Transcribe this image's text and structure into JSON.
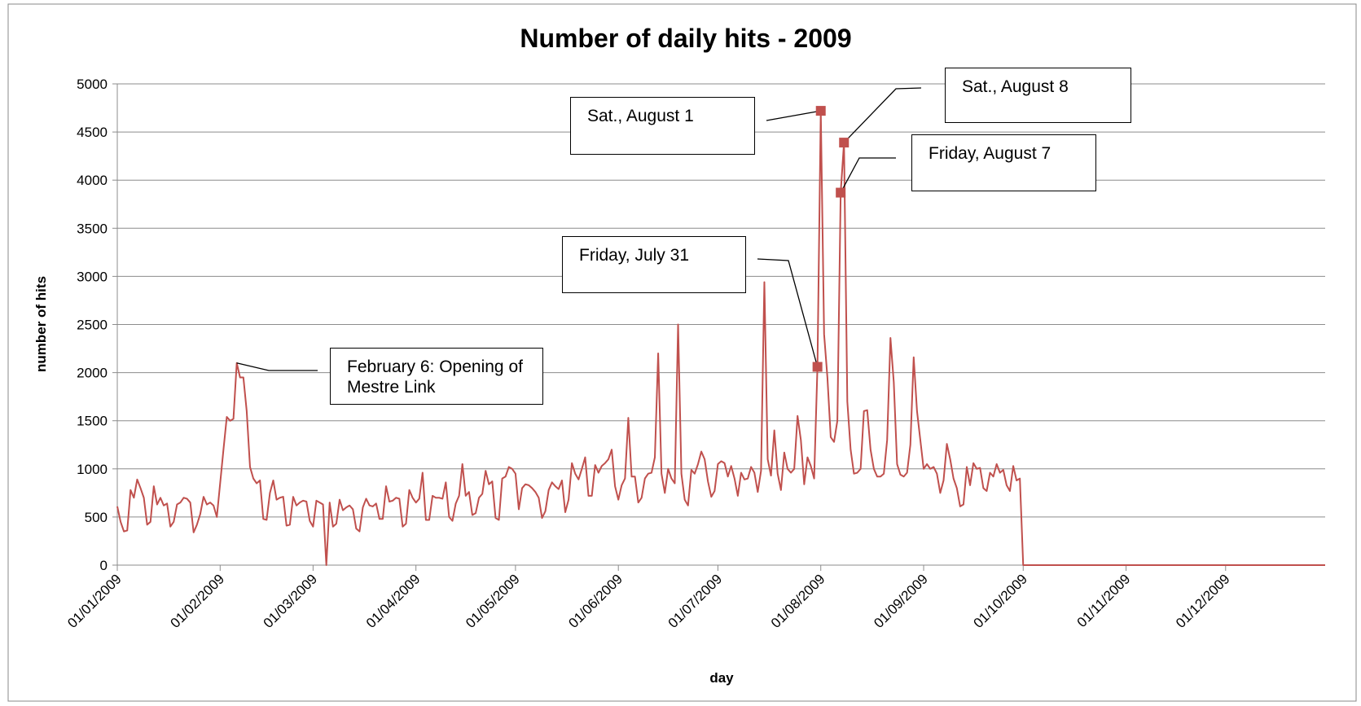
{
  "chart_data": {
    "type": "line",
    "title": "Number of daily hits - 2009",
    "xlabel": "day",
    "ylabel": "number of hits",
    "color": "#c0504d",
    "grid": true,
    "ylim": [
      0,
      5000
    ],
    "yticks": [
      0,
      500,
      1000,
      1500,
      2000,
      2500,
      3000,
      3500,
      4000,
      4500,
      5000
    ],
    "xticks": [
      "01/01/2009",
      "01/02/2009",
      "01/03/2009",
      "01/04/2009",
      "01/05/2009",
      "01/06/2009",
      "01/07/2009",
      "01/08/2009",
      "01/09/2009",
      "01/10/2009",
      "01/11/2009",
      "01/12/2009"
    ],
    "x": [
      "01/01/2009",
      "02/01/2009",
      "03/01/2009",
      "04/01/2009",
      "05/01/2009",
      "06/01/2009",
      "07/01/2009",
      "08/01/2009",
      "09/01/2009",
      "10/01/2009",
      "11/01/2009",
      "12/01/2009",
      "13/01/2009",
      "14/01/2009",
      "15/01/2009",
      "16/01/2009",
      "17/01/2009",
      "18/01/2009",
      "19/01/2009",
      "20/01/2009",
      "21/01/2009",
      "22/01/2009",
      "23/01/2009",
      "24/01/2009",
      "25/01/2009",
      "26/01/2009",
      "27/01/2009",
      "28/01/2009",
      "29/01/2009",
      "30/01/2009",
      "31/01/2009",
      "01/02/2009",
      "02/02/2009",
      "03/02/2009",
      "04/02/2009",
      "05/02/2009",
      "06/02/2009",
      "07/02/2009",
      "08/02/2009",
      "09/02/2009",
      "10/02/2009",
      "11/02/2009",
      "12/02/2009",
      "13/02/2009",
      "14/02/2009",
      "15/02/2009",
      "16/02/2009",
      "17/02/2009",
      "18/02/2009",
      "19/02/2009",
      "20/02/2009",
      "21/02/2009",
      "22/02/2009",
      "23/02/2009",
      "24/02/2009",
      "25/02/2009",
      "26/02/2009",
      "27/02/2009",
      "28/02/2009",
      "01/03/2009",
      "02/03/2009",
      "03/03/2009",
      "04/03/2009",
      "05/03/2009",
      "06/03/2009",
      "07/03/2009",
      "08/03/2009",
      "09/03/2009",
      "10/03/2009",
      "11/03/2009",
      "12/03/2009",
      "13/03/2009",
      "14/03/2009",
      "15/03/2009",
      "16/03/2009",
      "17/03/2009",
      "18/03/2009",
      "19/03/2009",
      "20/03/2009",
      "21/03/2009",
      "22/03/2009",
      "23/03/2009",
      "24/03/2009",
      "25/03/2009",
      "26/03/2009",
      "27/03/2009",
      "28/03/2009",
      "29/03/2009",
      "30/03/2009",
      "31/03/2009",
      "01/04/2009",
      "02/04/2009",
      "03/04/2009",
      "04/04/2009",
      "05/04/2009",
      "06/04/2009",
      "07/04/2009",
      "08/04/2009",
      "09/04/2009",
      "10/04/2009",
      "11/04/2009",
      "12/04/2009",
      "13/04/2009",
      "14/04/2009",
      "15/04/2009",
      "16/04/2009",
      "17/04/2009",
      "18/04/2009",
      "19/04/2009",
      "20/04/2009",
      "21/04/2009",
      "22/04/2009",
      "23/04/2009",
      "24/04/2009",
      "25/04/2009",
      "26/04/2009",
      "27/04/2009",
      "28/04/2009",
      "29/04/2009",
      "30/04/2009",
      "01/05/2009",
      "02/05/2009",
      "03/05/2009",
      "04/05/2009",
      "05/05/2009",
      "06/05/2009",
      "07/05/2009",
      "08/05/2009",
      "09/05/2009",
      "10/05/2009",
      "11/05/2009",
      "12/05/2009",
      "13/05/2009",
      "14/05/2009",
      "15/05/2009",
      "16/05/2009",
      "17/05/2009",
      "18/05/2009",
      "19/05/2009",
      "20/05/2009",
      "21/05/2009",
      "22/05/2009",
      "23/05/2009",
      "24/05/2009",
      "25/05/2009",
      "26/05/2009",
      "27/05/2009",
      "28/05/2009",
      "29/05/2009",
      "30/05/2009",
      "31/05/2009",
      "01/06/2009",
      "02/06/2009",
      "03/06/2009",
      "04/06/2009",
      "05/06/2009",
      "06/06/2009",
      "07/06/2009",
      "08/06/2009",
      "09/06/2009",
      "10/06/2009",
      "11/06/2009",
      "12/06/2009",
      "13/06/2009",
      "14/06/2009",
      "15/06/2009",
      "16/06/2009",
      "17/06/2009",
      "18/06/2009",
      "19/06/2009",
      "20/06/2009",
      "21/06/2009",
      "22/06/2009",
      "23/06/2009",
      "24/06/2009",
      "25/06/2009",
      "26/06/2009",
      "27/06/2009",
      "28/06/2009",
      "29/06/2009",
      "30/06/2009",
      "01/07/2009",
      "02/07/2009",
      "03/07/2009",
      "04/07/2009",
      "05/07/2009",
      "06/07/2009",
      "07/07/2009",
      "08/07/2009",
      "09/07/2009",
      "10/07/2009",
      "11/07/2009",
      "12/07/2009",
      "13/07/2009",
      "14/07/2009",
      "15/07/2009",
      "16/07/2009",
      "17/07/2009",
      "18/07/2009",
      "19/07/2009",
      "20/07/2009",
      "21/07/2009",
      "22/07/2009",
      "23/07/2009",
      "24/07/2009",
      "25/07/2009",
      "26/07/2009",
      "27/07/2009",
      "28/07/2009",
      "29/07/2009",
      "30/07/2009",
      "31/07/2009",
      "01/08/2009",
      "02/08/2009",
      "03/08/2009",
      "04/08/2009",
      "05/08/2009",
      "06/08/2009",
      "07/08/2009",
      "08/08/2009",
      "09/08/2009",
      "10/08/2009",
      "11/08/2009",
      "12/08/2009",
      "13/08/2009",
      "14/08/2009",
      "15/08/2009",
      "16/08/2009",
      "17/08/2009",
      "18/08/2009",
      "19/08/2009",
      "20/08/2009",
      "21/08/2009",
      "22/08/2009",
      "23/08/2009",
      "24/08/2009",
      "25/08/2009",
      "26/08/2009",
      "27/08/2009",
      "28/08/2009",
      "29/08/2009",
      "30/08/2009",
      "31/08/2009",
      "01/09/2009",
      "02/09/2009",
      "03/09/2009",
      "04/09/2009",
      "05/09/2009",
      "06/09/2009",
      "07/09/2009",
      "08/09/2009",
      "09/09/2009",
      "10/09/2009",
      "11/09/2009",
      "12/09/2009",
      "13/09/2009",
      "14/09/2009",
      "15/09/2009",
      "16/09/2009",
      "17/09/2009",
      "18/09/2009",
      "19/09/2009",
      "20/09/2009",
      "21/09/2009",
      "22/09/2009",
      "23/09/2009",
      "24/09/2009",
      "25/09/2009",
      "26/09/2009",
      "27/09/2009",
      "28/09/2009",
      "29/09/2009",
      "30/09/2009",
      "01/10/2009",
      "02/10/2009",
      "03/10/2009",
      "04/10/2009",
      "05/10/2009",
      "06/10/2009",
      "07/10/2009",
      "08/10/2009",
      "09/10/2009",
      "10/10/2009",
      "11/10/2009",
      "12/10/2009",
      "13/10/2009",
      "14/10/2009",
      "15/10/2009",
      "16/10/2009",
      "17/10/2009",
      "18/10/2009",
      "19/10/2009",
      "20/10/2009",
      "21/10/2009",
      "22/10/2009",
      "23/10/2009",
      "24/10/2009",
      "25/10/2009",
      "26/10/2009",
      "27/10/2009",
      "28/10/2009",
      "29/10/2009",
      "30/10/2009",
      "31/10/2009",
      "01/11/2009",
      "02/11/2009",
      "03/11/2009",
      "04/11/2009",
      "05/11/2009",
      "06/11/2009",
      "07/11/2009",
      "08/11/2009",
      "09/11/2009",
      "10/11/2009",
      "11/11/2009",
      "12/11/2009",
      "13/11/2009",
      "14/11/2009",
      "15/11/2009",
      "16/11/2009",
      "17/11/2009",
      "18/11/2009",
      "19/11/2009",
      "20/11/2009",
      "21/11/2009",
      "22/11/2009",
      "23/11/2009",
      "24/11/2009",
      "25/11/2009",
      "26/11/2009",
      "27/11/2009",
      "28/11/2009",
      "29/11/2009",
      "30/11/2009",
      "01/12/2009",
      "02/12/2009",
      "03/12/2009",
      "04/12/2009",
      "05/12/2009",
      "06/12/2009",
      "07/12/2009",
      "08/12/2009",
      "09/12/2009",
      "10/12/2009",
      "11/12/2009",
      "12/12/2009",
      "13/12/2009",
      "14/12/2009",
      "15/12/2009",
      "16/12/2009",
      "17/12/2009",
      "18/12/2009",
      "19/12/2009",
      "20/12/2009",
      "21/12/2009",
      "22/12/2009",
      "23/12/2009",
      "24/12/2009",
      "25/12/2009",
      "26/12/2009",
      "27/12/2009",
      "28/12/2009",
      "29/12/2009",
      "30/12/2009",
      "31/12/2009"
    ],
    "values": [
      610,
      450,
      350,
      360,
      780,
      700,
      890,
      800,
      700,
      420,
      450,
      820,
      630,
      700,
      620,
      640,
      400,
      450,
      630,
      650,
      700,
      690,
      650,
      340,
      420,
      530,
      710,
      630,
      650,
      620,
      500,
      850,
      1200,
      1540,
      1500,
      1520,
      2100,
      1950,
      1950,
      1600,
      1020,
      900,
      850,
      880,
      480,
      470,
      750,
      880,
      680,
      700,
      710,
      410,
      420,
      710,
      620,
      650,
      670,
      660,
      460,
      400,
      670,
      650,
      630,
      0,
      650,
      400,
      430,
      680,
      570,
      600,
      620,
      580,
      380,
      350,
      600,
      690,
      620,
      610,
      640,
      480,
      480,
      820,
      660,
      670,
      700,
      690,
      400,
      430,
      780,
      700,
      650,
      690,
      960,
      470,
      470,
      720,
      700,
      700,
      690,
      860,
      500,
      460,
      640,
      720,
      1050,
      720,
      760,
      520,
      540,
      700,
      740,
      980,
      840,
      870,
      490,
      470,
      900,
      920,
      1020,
      1000,
      950,
      580,
      800,
      840,
      830,
      800,
      760,
      700,
      490,
      560,
      780,
      860,
      820,
      790,
      880,
      550,
      680,
      1060,
      950,
      890,
      1000,
      1120,
      720,
      720,
      1040,
      960,
      1030,
      1060,
      1100,
      1200,
      820,
      680,
      830,
      900,
      1530,
      920,
      920,
      650,
      700,
      900,
      950,
      960,
      1120,
      2200,
      950,
      750,
      1000,
      900,
      850,
      2500,
      950,
      680,
      620,
      990,
      950,
      1050,
      1180,
      1100,
      870,
      710,
      770,
      1050,
      1080,
      1060,
      920,
      1030,
      900,
      720,
      960,
      890,
      900,
      1020,
      960,
      760,
      980,
      2940,
      1100,
      930,
      1400,
      950,
      780,
      1170,
      1000,
      960,
      1000,
      1550,
      1300,
      840,
      1120,
      1030,
      900,
      2060,
      4720,
      2400,
      1950,
      1330,
      1280,
      1500,
      3870,
      4390,
      1700,
      1200,
      950,
      960,
      1000,
      1600,
      1610,
      1200,
      1000,
      920,
      920,
      950,
      1300,
      2360,
      1900,
      1050,
      940,
      920,
      960,
      1250,
      2160,
      1600,
      1300,
      1000,
      1050,
      1000,
      1020,
      950,
      750,
      880,
      1260,
      1100,
      900,
      800,
      610,
      630,
      1020,
      830,
      1060,
      1000,
      1010,
      800,
      770,
      960,
      920,
      1050,
      960,
      990,
      830,
      770,
      1030,
      880,
      900,
      0,
      0,
      0,
      0,
      0,
      0,
      0,
      0,
      0,
      0,
      0,
      0,
      0,
      0,
      0,
      0,
      0,
      0,
      0,
      0,
      0,
      0,
      0,
      0,
      0,
      0,
      0,
      0,
      0,
      0,
      0,
      0,
      0,
      0,
      0,
      0,
      0,
      0,
      0,
      0,
      0,
      0,
      0,
      0,
      0,
      0,
      0,
      0,
      0,
      0,
      0,
      0,
      0,
      0,
      0,
      0,
      0,
      0,
      0,
      0,
      0,
      0,
      0,
      0,
      0,
      0,
      0,
      0,
      0,
      0,
      0,
      0,
      0,
      0,
      0,
      0,
      0,
      0,
      0,
      0,
      0,
      0,
      0,
      0,
      0,
      0,
      0,
      0,
      0,
      0,
      0,
      0
    ],
    "annotations": [
      {
        "text": "February 6: Opening of Mestre Link",
        "x": "06/02/2009",
        "marker": false
      },
      {
        "text": "Friday, July 31",
        "x": "31/07/2009",
        "marker": true
      },
      {
        "text": "Sat., August 1",
        "x": "01/08/2009",
        "marker": true
      },
      {
        "text": "Sat., August 8",
        "x": "08/08/2009",
        "marker": true
      },
      {
        "text": "Friday, August 7",
        "x": "07/08/2009",
        "marker": true
      }
    ]
  }
}
